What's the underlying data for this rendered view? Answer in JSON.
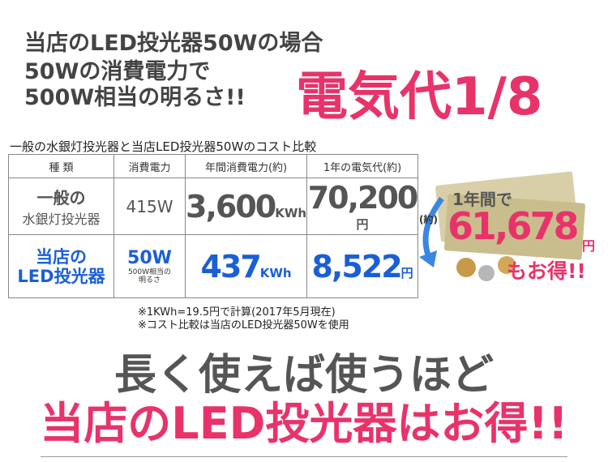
{
  "header": {
    "lines": [
      "当店のLED投光器50Wの場合",
      "50Wの消費電力で",
      "500W相当の明るさ!!"
    ],
    "headline": "電気代1/8"
  },
  "table": {
    "caption": "一般の水銀灯投光器と当店LED投光器50Wのコスト比較",
    "headers": [
      "種 類",
      "消費電力",
      "年間消費電力(約)",
      "1年の電気代(約)"
    ],
    "rows": [
      {
        "type": [
          "一般の",
          "水銀灯投光器"
        ],
        "power": "415W",
        "power_note": null,
        "annual_kwh": "3,600",
        "kwh_unit": "KWh",
        "annual_cost": "70,200",
        "yen_unit": "円"
      },
      {
        "type": [
          "当店の",
          "LED投光器"
        ],
        "power": "50W",
        "power_note": [
          "500W相当の",
          "明るさ"
        ],
        "annual_kwh": "437",
        "kwh_unit": "KWh",
        "annual_cost": "8,522",
        "yen_unit": "円"
      }
    ]
  },
  "savings": {
    "period": "1年間で",
    "approx": "(約)",
    "amount": "61,678",
    "unit": "円",
    "tail": "もお得!!"
  },
  "notes": [
    "※1KWh=19.5円で計算(2017年5月現在)",
    "※コスト比較は当店のLED投光器50Wを使用"
  ],
  "footer": {
    "line1": "長く使えば使うほど",
    "line2": "当店のLED投光器はお得!!"
  }
}
